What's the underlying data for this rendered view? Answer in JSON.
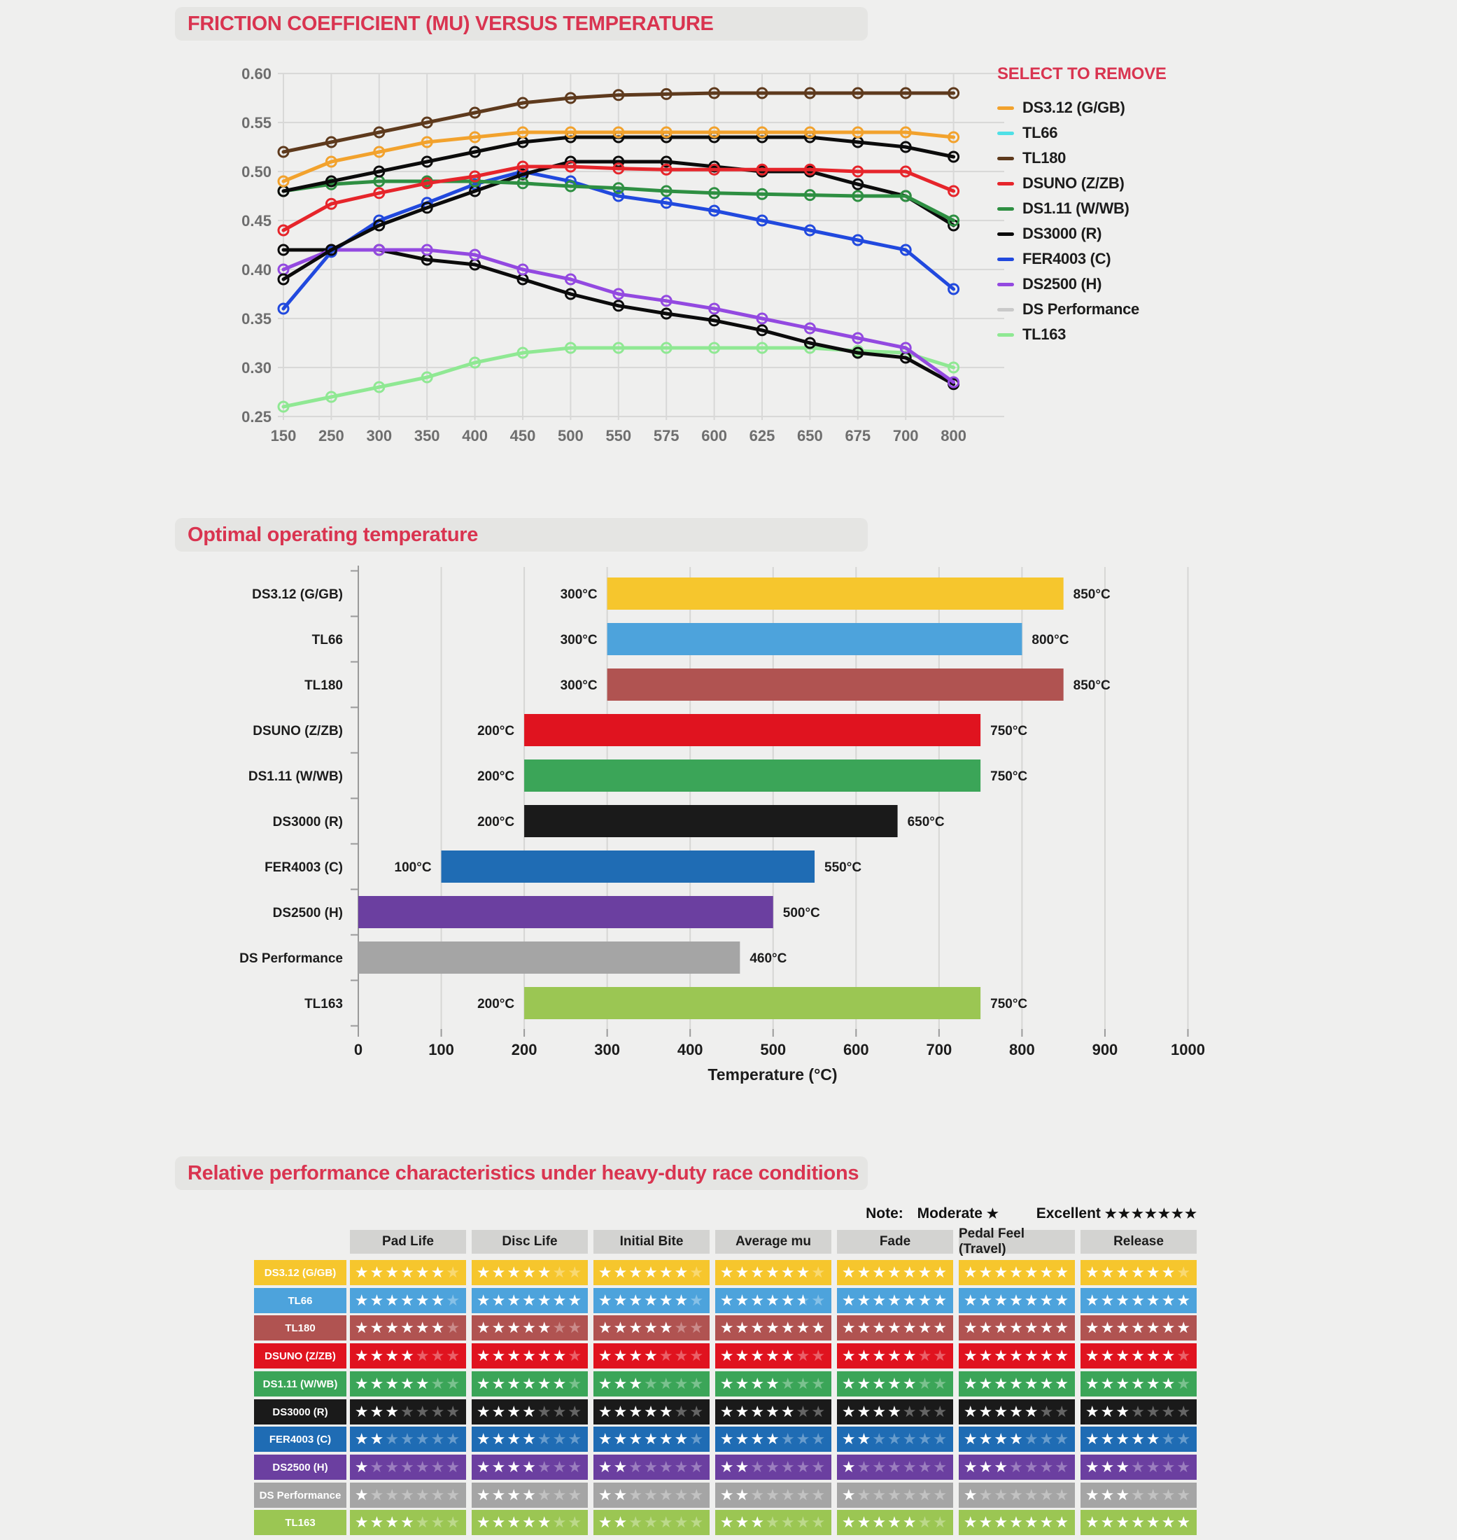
{
  "sections": {
    "friction": {
      "title": "FRICTION COEFFICIENT (MU) VERSUS TEMPERATURE",
      "legend_title": "SELECT TO REMOVE"
    },
    "temperature": {
      "title": "Optimal operating temperature"
    },
    "performance": {
      "title": "Relative performance characteristics under heavy-duty race conditions",
      "note": {
        "label": "Note:",
        "moderate_label": "Moderate",
        "moderate_stars": 1,
        "excellent_label": "Excellent",
        "excellent_stars": 7
      }
    }
  },
  "chart_data": [
    {
      "id": "friction-line",
      "type": "line",
      "title": "FRICTION COEFFICIENT (MU) VERSUS TEMPERATURE",
      "xlabel": "",
      "ylabel": "",
      "x_categories": [
        "150",
        "250",
        "300",
        "350",
        "400",
        "450",
        "500",
        "550",
        "575",
        "600",
        "625",
        "650",
        "675",
        "700",
        "800"
      ],
      "ylim": [
        0.25,
        0.6
      ],
      "yticks": [
        0.6,
        0.55,
        0.5,
        0.45,
        0.4,
        0.35,
        0.3,
        0.25
      ],
      "grid": true,
      "legend_position": "right",
      "series": [
        {
          "name": "DS3.12 (G/GB)",
          "legend_color": "#f2a22d",
          "line_color": "#f2a22d",
          "values": [
            0.49,
            0.51,
            0.52,
            0.53,
            0.535,
            0.54,
            0.54,
            0.54,
            0.54,
            0.54,
            0.54,
            0.54,
            0.54,
            0.54,
            0.535
          ]
        },
        {
          "name": "TL66",
          "legend_color": "#4fe0e6",
          "line_color": "#0b0b0b",
          "values": [
            0.48,
            0.49,
            0.5,
            0.51,
            0.52,
            0.53,
            0.535,
            0.535,
            0.535,
            0.535,
            0.535,
            0.535,
            0.53,
            0.525,
            0.515
          ]
        },
        {
          "name": "TL180",
          "legend_color": "#5e3a1d",
          "line_color": "#5e3a1d",
          "values": [
            0.52,
            0.53,
            0.54,
            0.55,
            0.56,
            0.57,
            0.575,
            0.578,
            0.579,
            0.58,
            0.58,
            0.58,
            0.58,
            0.58,
            0.58
          ]
        },
        {
          "name": "DSUNO (Z/ZB)",
          "legend_color": "#e6252b",
          "line_color": "#e6252b",
          "values": [
            0.44,
            0.467,
            0.478,
            0.488,
            0.495,
            0.505,
            0.505,
            0.503,
            0.502,
            0.502,
            0.502,
            0.502,
            0.5,
            0.5,
            0.48
          ]
        },
        {
          "name": "DS1.11 (W/WB)",
          "legend_color": "#2e8f42",
          "line_color": "#2e8f42",
          "values": [
            0.48,
            0.487,
            0.49,
            0.49,
            0.49,
            0.488,
            0.485,
            0.483,
            0.48,
            0.478,
            0.477,
            0.476,
            0.475,
            0.475,
            0.45
          ]
        },
        {
          "name": "DS3000 (R)",
          "legend_color": "#0b0b0b",
          "line_color": "#0b0b0b",
          "values": [
            0.39,
            0.42,
            0.445,
            0.463,
            0.48,
            0.497,
            0.51,
            0.51,
            0.51,
            0.505,
            0.5,
            0.5,
            0.487,
            0.475,
            0.445
          ]
        },
        {
          "name": "FER4003 (C)",
          "legend_color": "#2149de",
          "line_color": "#2149de",
          "values": [
            0.36,
            0.418,
            0.45,
            0.468,
            0.487,
            0.5,
            0.49,
            0.475,
            0.468,
            0.46,
            0.45,
            0.44,
            0.43,
            0.42,
            0.38
          ]
        },
        {
          "name": "DS2500 (H)",
          "legend_color": "#9349e0",
          "line_color": "#9349e0",
          "values": [
            0.4,
            0.42,
            0.42,
            0.42,
            0.415,
            0.4,
            0.39,
            0.375,
            0.368,
            0.36,
            0.35,
            0.34,
            0.33,
            0.32,
            0.285
          ]
        },
        {
          "name": "DS Performance",
          "legend_color": "#c9c9c9",
          "line_color": "#0b0b0b",
          "values": [
            0.42,
            0.42,
            0.42,
            0.41,
            0.405,
            0.39,
            0.375,
            0.363,
            0.355,
            0.348,
            0.338,
            0.325,
            0.315,
            0.31,
            0.283
          ]
        },
        {
          "name": "TL163",
          "legend_color": "#8fe893",
          "line_color": "#8fe893",
          "values": [
            0.26,
            0.27,
            0.28,
            0.29,
            0.305,
            0.315,
            0.32,
            0.32,
            0.32,
            0.32,
            0.32,
            0.32,
            0.317,
            0.315,
            0.3
          ]
        }
      ]
    },
    {
      "id": "operating-temperature",
      "type": "bar",
      "orientation": "horizontal-range",
      "title": "Optimal operating temperature",
      "xlabel": "Temperature (°C)",
      "xlim": [
        0,
        1000
      ],
      "xticks": [
        0,
        100,
        200,
        300,
        400,
        500,
        600,
        700,
        800,
        900,
        1000
      ],
      "grid": true,
      "bars": [
        {
          "name": "DS3.12 (G/GB)",
          "color": "#f6c62d",
          "start": 300,
          "end": 850,
          "start_label": "300°C",
          "end_label": "850°C"
        },
        {
          "name": "TL66",
          "color": "#4da3dc",
          "start": 300,
          "end": 800,
          "start_label": "300°C",
          "end_label": "800°C"
        },
        {
          "name": "TL180",
          "color": "#b05351",
          "start": 300,
          "end": 850,
          "start_label": "300°C",
          "end_label": "850°C"
        },
        {
          "name": "DSUNO (Z/ZB)",
          "color": "#e0131f",
          "start": 200,
          "end": 750,
          "start_label": "200°C",
          "end_label": "750°C"
        },
        {
          "name": "DS1.11 (W/WB)",
          "color": "#3ba558",
          "start": 200,
          "end": 750,
          "start_label": "200°C",
          "end_label": "750°C"
        },
        {
          "name": "DS3000 (R)",
          "color": "#1a1a1a",
          "start": 200,
          "end": 650,
          "start_label": "200°C",
          "end_label": "650°C"
        },
        {
          "name": "FER4003 (C)",
          "color": "#1f6cb4",
          "start": 100,
          "end": 550,
          "start_label": "100°C",
          "end_label": "550°C"
        },
        {
          "name": "DS2500 (H)",
          "color": "#6b3fa0",
          "start": 0,
          "end": 500,
          "start_label": null,
          "end_label": "500°C"
        },
        {
          "name": "DS Performance",
          "color": "#a5a5a5",
          "start": 0,
          "end": 460,
          "start_label": null,
          "end_label": "460°C"
        },
        {
          "name": "TL163",
          "color": "#9bc653",
          "start": 200,
          "end": 750,
          "start_label": "200°C",
          "end_label": "750°C"
        }
      ]
    },
    {
      "id": "performance-table",
      "type": "table",
      "title": "Relative performance characteristics under heavy-duty race conditions",
      "rating_max": 7,
      "columns": [
        "Pad Life",
        "Disc Life",
        "Initial Bite",
        "Average mu",
        "Fade",
        "Pedal Feel (Travel)",
        "Release"
      ],
      "rows": [
        {
          "name": "DS3.12 (G/GB)",
          "color": "#f6c62d",
          "ratings": [
            6,
            5,
            6,
            6,
            7,
            7,
            6
          ]
        },
        {
          "name": "TL66",
          "color": "#4da3dc",
          "ratings": [
            6,
            7,
            6,
            5.5,
            7,
            7,
            7
          ]
        },
        {
          "name": "TL180",
          "color": "#b05351",
          "ratings": [
            6,
            5,
            5,
            7,
            7,
            7,
            7
          ]
        },
        {
          "name": "DSUNO (Z/ZB)",
          "color": "#e0131f",
          "ratings": [
            4,
            6,
            4,
            5,
            5,
            7,
            6
          ]
        },
        {
          "name": "DS1.11 (W/WB)",
          "color": "#3ba558",
          "ratings": [
            5,
            6,
            3,
            4,
            5,
            7,
            6
          ]
        },
        {
          "name": "DS3000 (R)",
          "color": "#1a1a1a",
          "ratings": [
            3,
            4,
            5,
            5,
            4,
            5,
            3
          ]
        },
        {
          "name": "FER4003 (C)",
          "color": "#1f6cb4",
          "ratings": [
            2,
            4,
            6,
            4,
            2,
            4,
            5
          ]
        },
        {
          "name": "DS2500 (H)",
          "color": "#6b3fa0",
          "ratings": [
            1,
            4,
            2,
            2,
            1,
            3,
            3
          ]
        },
        {
          "name": "DS Performance",
          "color": "#a5a5a5",
          "ratings": [
            1,
            4,
            2,
            2,
            1,
            1,
            3
          ]
        },
        {
          "name": "TL163",
          "color": "#9bc653",
          "ratings": [
            4,
            5,
            2,
            3,
            5,
            7,
            7
          ]
        }
      ]
    }
  ]
}
